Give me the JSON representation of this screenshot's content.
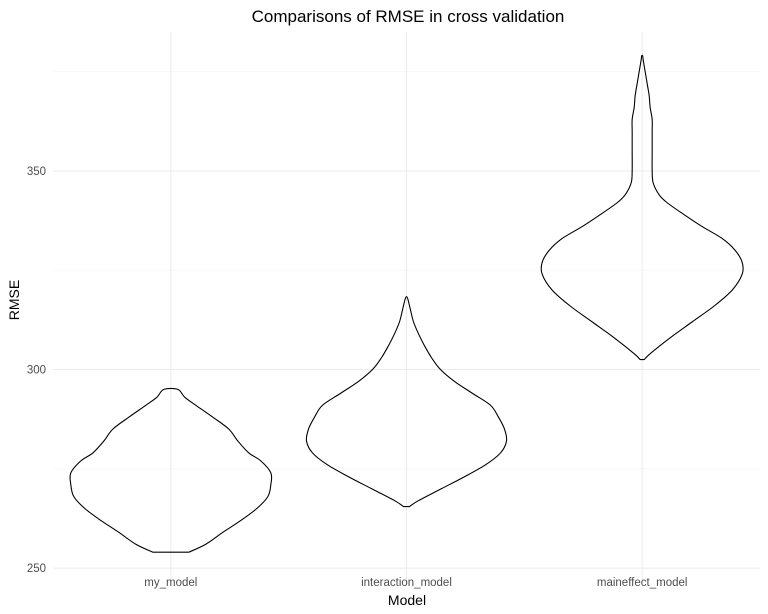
{
  "chart_data": {
    "type": "violin",
    "title": "Comparisons of RMSE in cross validation",
    "xlabel": "Model",
    "ylabel": "RMSE",
    "categories": [
      "my_model",
      "interaction_model",
      "maineffect_model"
    ],
    "ylim": [
      247,
      385
    ],
    "yticks": [
      250,
      300,
      350
    ],
    "grid": true,
    "legend": "none",
    "series": [
      {
        "category": "my_model",
        "min": 254,
        "max": 295,
        "profile": [
          [
            254,
            0.18
          ],
          [
            256,
            0.35
          ],
          [
            259,
            0.52
          ],
          [
            262,
            0.7
          ],
          [
            265,
            0.86
          ],
          [
            268,
            0.97
          ],
          [
            271,
            1.0
          ],
          [
            274,
            1.0
          ],
          [
            277,
            0.9
          ],
          [
            279,
            0.78
          ],
          [
            282,
            0.67
          ],
          [
            285,
            0.58
          ],
          [
            288,
            0.42
          ],
          [
            291,
            0.25
          ],
          [
            293,
            0.14
          ],
          [
            295,
            0.07
          ]
        ]
      },
      {
        "category": "interaction_model",
        "min": 265.5,
        "max": 318,
        "profile": [
          [
            265.5,
            0.03
          ],
          [
            267,
            0.12
          ],
          [
            270,
            0.35
          ],
          [
            273,
            0.58
          ],
          [
            276,
            0.79
          ],
          [
            279,
            0.94
          ],
          [
            282,
            1.0
          ],
          [
            285,
            0.98
          ],
          [
            288,
            0.92
          ],
          [
            291,
            0.84
          ],
          [
            294,
            0.66
          ],
          [
            297,
            0.48
          ],
          [
            300,
            0.34
          ],
          [
            303,
            0.25
          ],
          [
            306,
            0.18
          ],
          [
            309,
            0.12
          ],
          [
            312,
            0.07
          ],
          [
            315,
            0.04
          ],
          [
            318,
            0.01
          ]
        ]
      },
      {
        "category": "maineffect_model",
        "min": 302.5,
        "max": 379,
        "profile": [
          [
            302.5,
            0.02
          ],
          [
            304,
            0.08
          ],
          [
            308,
            0.28
          ],
          [
            312,
            0.5
          ],
          [
            316,
            0.72
          ],
          [
            320,
            0.9
          ],
          [
            324,
            1.0
          ],
          [
            327,
            1.0
          ],
          [
            330,
            0.93
          ],
          [
            333,
            0.8
          ],
          [
            336,
            0.6
          ],
          [
            339,
            0.42
          ],
          [
            342,
            0.25
          ],
          [
            344,
            0.17
          ],
          [
            347,
            0.11
          ],
          [
            350,
            0.1
          ],
          [
            355,
            0.1
          ],
          [
            360,
            0.1
          ],
          [
            363,
            0.1
          ],
          [
            366,
            0.08
          ],
          [
            369,
            0.07
          ],
          [
            372,
            0.05
          ],
          [
            375,
            0.03
          ],
          [
            378,
            0.01
          ],
          [
            379,
            0.005
          ]
        ]
      }
    ]
  },
  "colors": {
    "outline": "#000000",
    "grid": "#ebebeb",
    "tick_text": "#4d4d4d"
  }
}
